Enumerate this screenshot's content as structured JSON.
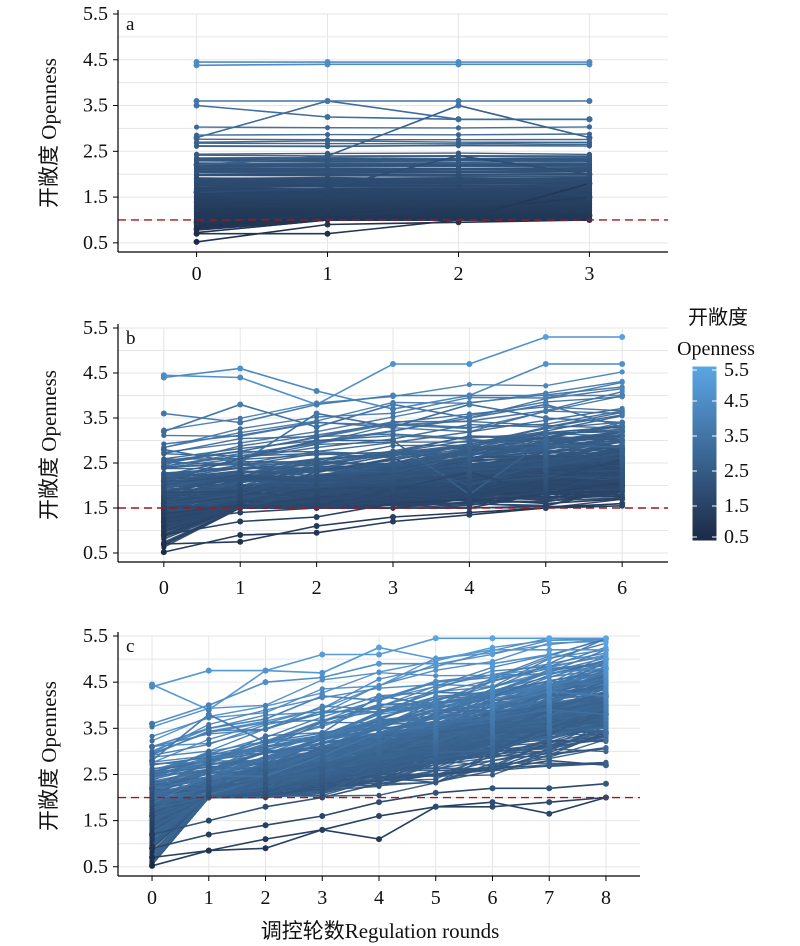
{
  "figure": {
    "x_axis_title": "调控轮数Regulation rounds",
    "colorbar": {
      "title_cn": "开敞度",
      "title_en": "Openness",
      "ticks": [
        "5.5",
        "4.5",
        "3.5",
        "2.5",
        "1.5",
        "0.5"
      ],
      "range": [
        0.5,
        5.5
      ],
      "color_low": "#1c2a45",
      "color_high": "#5ba6e6"
    },
    "reference_line_color": "#a01818"
  },
  "chart_data": [
    {
      "type": "line",
      "panel_label": "a",
      "ylabel": "开敞度 Openness",
      "xlabel": "",
      "x": [
        0,
        1,
        2,
        3
      ],
      "xlim": [
        -0.6,
        3.6
      ],
      "ylim": [
        0.3,
        5.5
      ],
      "yticks": [
        0.5,
        1.5,
        2.5,
        3.5,
        4.5,
        5.5
      ],
      "threshold": 1.0,
      "grid": true,
      "representative_series": [
        {
          "values": [
            4.45,
            4.45,
            4.45,
            4.45
          ]
        },
        {
          "values": [
            4.38,
            4.4,
            4.4,
            4.4
          ]
        },
        {
          "values": [
            3.6,
            3.6,
            3.6,
            3.6
          ]
        },
        {
          "values": [
            3.5,
            3.25,
            3.2,
            3.2
          ]
        },
        {
          "values": [
            2.8,
            3.6,
            3.2,
            3.2
          ]
        },
        {
          "values": [
            2.2,
            2.4,
            3.5,
            2.8
          ]
        },
        {
          "values": [
            1.6,
            1.7,
            2.4,
            2.0
          ]
        },
        {
          "values": [
            0.95,
            1.1,
            1.2,
            1.5
          ]
        },
        {
          "values": [
            0.8,
            1.05,
            1.0,
            1.1
          ]
        },
        {
          "values": [
            0.7,
            0.7,
            1.0,
            1.8
          ]
        },
        {
          "values": [
            0.52,
            0.9,
            0.95,
            1.0
          ]
        }
      ]
    },
    {
      "type": "line",
      "panel_label": "b",
      "ylabel": "开敞度 Openness",
      "xlabel": "",
      "x": [
        0,
        1,
        2,
        3,
        4,
        5,
        6
      ],
      "xlim": [
        -0.6,
        6.6
      ],
      "ylim": [
        0.3,
        5.5
      ],
      "yticks": [
        0.5,
        1.5,
        2.5,
        3.5,
        4.5,
        5.5
      ],
      "threshold": 1.5,
      "grid": true,
      "representative_series": [
        {
          "values": [
            4.45,
            4.4,
            3.8,
            4.7,
            4.7,
            5.3,
            5.3
          ]
        },
        {
          "values": [
            4.4,
            4.6,
            4.1,
            3.7,
            4.0,
            4.7,
            4.7
          ]
        },
        {
          "values": [
            3.6,
            3.4,
            3.8,
            4.0,
            4.0,
            4.0,
            4.0
          ]
        },
        {
          "values": [
            3.2,
            3.8,
            3.3,
            3.8,
            3.5,
            3.8,
            3.3
          ]
        },
        {
          "values": [
            2.8,
            2.5,
            3.6,
            3.3,
            3.8,
            3.5,
            3.4
          ]
        },
        {
          "values": [
            2.1,
            2.6,
            3.0,
            3.0,
            1.8,
            3.0,
            3.2
          ]
        },
        {
          "values": [
            1.6,
            1.8,
            2.3,
            2.6,
            2.0,
            2.5,
            2.8
          ]
        },
        {
          "values": [
            1.2,
            1.4,
            1.5,
            1.9,
            2.3,
            1.8,
            2.0
          ]
        },
        {
          "values": [
            0.9,
            1.2,
            1.3,
            1.6,
            1.7,
            1.6,
            1.7
          ]
        },
        {
          "values": [
            0.7,
            0.75,
            1.1,
            1.3,
            1.4,
            1.5,
            1.6
          ]
        },
        {
          "values": [
            0.52,
            0.9,
            0.95,
            1.2,
            1.35,
            1.5,
            1.55
          ]
        }
      ]
    },
    {
      "type": "line",
      "panel_label": "c",
      "ylabel": "开敞度 Openness",
      "xlabel": "调控轮数Regulation rounds",
      "x": [
        0,
        1,
        2,
        3,
        4,
        5,
        6,
        7,
        8
      ],
      "xlim": [
        -0.6,
        8.6
      ],
      "ylim": [
        0.3,
        5.5
      ],
      "yticks": [
        0.5,
        1.5,
        2.5,
        3.5,
        4.5,
        5.5
      ],
      "threshold": 2.0,
      "grid": true,
      "representative_series": [
        {
          "values": [
            4.45,
            3.9,
            4.75,
            5.1,
            5.1,
            5.45,
            5.45,
            5.45,
            5.45
          ]
        },
        {
          "values": [
            4.4,
            4.75,
            4.75,
            4.7,
            5.25,
            5.0,
            5.2,
            5.2,
            5.2
          ]
        },
        {
          "values": [
            3.6,
            4.0,
            4.5,
            4.6,
            4.9,
            4.9,
            4.9,
            5.1,
            5.0
          ]
        },
        {
          "values": [
            3.1,
            3.5,
            3.7,
            4.2,
            4.1,
            4.5,
            4.6,
            4.7,
            4.8
          ]
        },
        {
          "values": [
            2.8,
            3.8,
            3.2,
            3.4,
            4.2,
            4.0,
            4.0,
            4.3,
            4.2
          ]
        },
        {
          "values": [
            2.2,
            2.6,
            3.0,
            3.1,
            3.5,
            3.6,
            3.7,
            3.9,
            3.8
          ]
        },
        {
          "values": [
            1.6,
            2.2,
            2.4,
            2.6,
            3.0,
            3.0,
            3.3,
            3.5,
            3.4
          ]
        },
        {
          "values": [
            1.2,
            1.5,
            1.8,
            2.0,
            2.3,
            2.5,
            2.6,
            2.8,
            2.7
          ]
        },
        {
          "values": [
            0.9,
            1.2,
            1.4,
            1.6,
            1.9,
            2.1,
            2.2,
            2.2,
            2.3
          ]
        },
        {
          "values": [
            0.7,
            0.85,
            1.1,
            1.3,
            1.1,
            1.8,
            1.9,
            1.65,
            2.0
          ]
        },
        {
          "values": [
            0.52,
            0.85,
            0.9,
            1.3,
            1.6,
            1.8,
            1.8,
            1.9,
            2.0
          ]
        }
      ]
    }
  ]
}
